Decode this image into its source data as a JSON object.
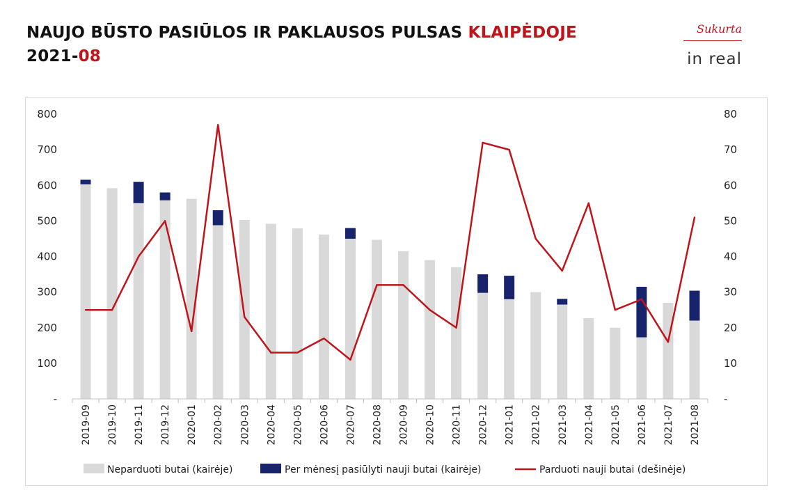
{
  "header": {
    "title_main": "NAUJO BŪSTO PASIŪLOS IR PAKLAUSOS PULSAS ",
    "title_accent": "KLAIPĖDOJE",
    "period_main": "2021-",
    "period_accent": "08"
  },
  "logo": {
    "sukurta": "Sukurta",
    "brand": "in real"
  },
  "colors": {
    "accent": "#c0141b",
    "unsold_bar": "#d9d9d9",
    "new_offered_bar": "#17246b",
    "sold_line": "#c0141b"
  },
  "chart_data": {
    "type": "bar",
    "categories": [
      "2019-09",
      "2019-10",
      "2019-11",
      "2019-12",
      "2020-01",
      "2020-02",
      "2020-03",
      "2020-04",
      "2020-05",
      "2020-06",
      "2020-07",
      "2020-08",
      "2020-09",
      "2020-10",
      "2020-11",
      "2020-12",
      "2021-01",
      "2021-02",
      "2021-03",
      "2021-04",
      "2021-05",
      "2021-06",
      "2021-07",
      "2021-08"
    ],
    "series": [
      {
        "name": "Neparduoti butai (kairėje)",
        "type": "bar",
        "axis": "left",
        "values": [
          603,
          592,
          550,
          558,
          562,
          488,
          503,
          492,
          479,
          462,
          450,
          447,
          415,
          390,
          370,
          298,
          280,
          300,
          265,
          227,
          200,
          173,
          270,
          220
        ]
      },
      {
        "name": "Per mėnesį pasiūlyti nauji butai (kairėje)",
        "type": "bar",
        "axis": "left",
        "values": [
          13,
          0,
          60,
          22,
          0,
          42,
          0,
          0,
          0,
          0,
          30,
          0,
          0,
          0,
          0,
          52,
          66,
          0,
          16,
          0,
          0,
          142,
          0,
          84
        ]
      },
      {
        "name": "Parduoti nauji butai (dešinėje)",
        "type": "line",
        "axis": "right",
        "values": [
          25,
          25,
          40,
          50,
          19,
          77,
          23,
          13,
          13,
          17,
          11,
          32,
          32,
          25,
          20,
          72,
          70,
          45,
          36,
          55,
          25,
          28,
          16,
          51
        ]
      }
    ],
    "y_left": {
      "min": 0,
      "max": 800,
      "ticks": [
        "-",
        "100",
        "200",
        "300",
        "400",
        "500",
        "600",
        "700",
        "800"
      ]
    },
    "y_right": {
      "min": 0,
      "max": 80,
      "ticks": [
        "-",
        "10",
        "20",
        "30",
        "40",
        "50",
        "60",
        "70",
        "80"
      ]
    },
    "grid": false,
    "legend_position": "bottom"
  }
}
